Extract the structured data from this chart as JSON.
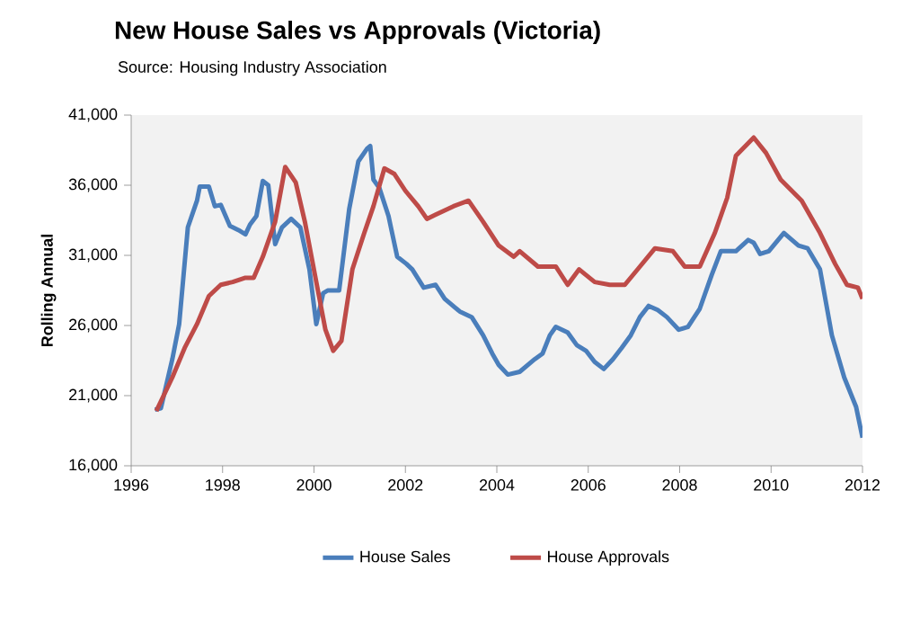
{
  "chart_data": {
    "type": "line",
    "title": "New House Sales vs Approvals (Victoria)",
    "subtitle": "Source: Housing Industry Association",
    "ylabel": "Rolling Annual",
    "xlim": [
      1996,
      2012
    ],
    "xticks": [
      1996,
      1998,
      2000,
      2002,
      2004,
      2006,
      2008,
      2010,
      2012
    ],
    "ylim": [
      16000,
      41000
    ],
    "yticks": [
      {
        "value": 16000,
        "label": "16,000"
      },
      {
        "value": 21000,
        "label": "21,000"
      },
      {
        "value": 26000,
        "label": "26,000"
      },
      {
        "value": 31000,
        "label": "31,000"
      },
      {
        "value": 36000,
        "label": "36,000"
      },
      {
        "value": 41000,
        "label": "41,000"
      }
    ],
    "grid": false,
    "legend": "bottom",
    "marker": "none",
    "line_style": "solid",
    "series": [
      {
        "name": "House Sales",
        "color": "#4a7ebb",
        "x": [
          1996.52,
          1996.65,
          1996.9,
          1997.05,
          1997.24,
          1997.44,
          1997.5,
          1997.7,
          1997.83,
          1997.96,
          1998.16,
          1998.35,
          1998.5,
          1998.6,
          1998.74,
          1998.88,
          1999.0,
          1999.15,
          1999.3,
          1999.5,
          1999.7,
          1999.9,
          2000.05,
          2000.2,
          2000.3,
          2000.55,
          2000.77,
          2000.97,
          2001.16,
          2001.23,
          2001.3,
          2001.43,
          2001.63,
          2001.82,
          2002.02,
          2002.15,
          2002.4,
          2002.66,
          2002.86,
          2003.19,
          2003.45,
          2003.7,
          2003.9,
          2004.04,
          2004.24,
          2004.5,
          2004.83,
          2005.0,
          2005.16,
          2005.29,
          2005.55,
          2005.75,
          2005.95,
          2006.14,
          2006.34,
          2006.54,
          2006.73,
          2006.93,
          2007.13,
          2007.32,
          2007.52,
          2007.72,
          2007.98,
          2008.18,
          2008.44,
          2008.7,
          2008.9,
          2009.23,
          2009.5,
          2009.62,
          2009.76,
          2009.95,
          2010.28,
          2010.6,
          2010.8,
          2011.07,
          2011.33,
          2011.6,
          2011.86,
          2012.0
        ],
        "values": [
          20000,
          20100,
          23600,
          26100,
          33000,
          34900,
          35900,
          35900,
          34500,
          34600,
          33100,
          32800,
          32500,
          33200,
          33800,
          36300,
          36000,
          31800,
          33000,
          33600,
          33000,
          30000,
          26100,
          28300,
          28500,
          28500,
          34300,
          37700,
          38600,
          38800,
          36400,
          35800,
          33800,
          30900,
          30400,
          30000,
          28700,
          28900,
          27900,
          27000,
          26600,
          25300,
          24000,
          23200,
          22500,
          22700,
          23600,
          24000,
          25300,
          25900,
          25500,
          24600,
          24200,
          23400,
          22900,
          23600,
          24400,
          25300,
          26600,
          27400,
          27100,
          26600,
          25700,
          25900,
          27200,
          29600,
          31300,
          31300,
          32100,
          31900,
          31100,
          31300,
          32600,
          31700,
          31500,
          30000,
          25300,
          22300,
          20200,
          18000
        ]
      },
      {
        "name": "House Approvals",
        "color": "#be4b48",
        "x": [
          1996.55,
          1996.9,
          1997.17,
          1997.44,
          1997.7,
          1997.96,
          1998.22,
          1998.5,
          1998.68,
          1998.88,
          1999.15,
          1999.37,
          1999.6,
          1999.8,
          2000.05,
          2000.25,
          2000.42,
          2000.6,
          2000.84,
          2001.1,
          2001.3,
          2001.54,
          2001.76,
          2002.0,
          2002.28,
          2002.47,
          2002.66,
          2003.05,
          2003.38,
          2003.7,
          2004.04,
          2004.37,
          2004.5,
          2004.9,
          2005.29,
          2005.55,
          2005.8,
          2006.14,
          2006.47,
          2006.8,
          2007.13,
          2007.46,
          2007.85,
          2008.11,
          2008.44,
          2008.77,
          2009.04,
          2009.23,
          2009.62,
          2009.89,
          2010.21,
          2010.67,
          2011.07,
          2011.4,
          2011.66,
          2011.9,
          2012.0
        ],
        "values": [
          19900,
          22300,
          24400,
          26100,
          28100,
          28900,
          29100,
          29400,
          29400,
          30900,
          33400,
          37300,
          36200,
          33400,
          29100,
          25700,
          24200,
          24900,
          30000,
          32600,
          34500,
          37200,
          36800,
          35600,
          34500,
          33600,
          33900,
          34500,
          34900,
          33400,
          31700,
          30900,
          31300,
          30200,
          30200,
          28900,
          30000,
          29100,
          28900,
          28900,
          30200,
          31500,
          31300,
          30200,
          30200,
          32600,
          35100,
          38100,
          39400,
          38300,
          36400,
          34900,
          32600,
          30400,
          28900,
          28700,
          27900
        ]
      }
    ]
  }
}
